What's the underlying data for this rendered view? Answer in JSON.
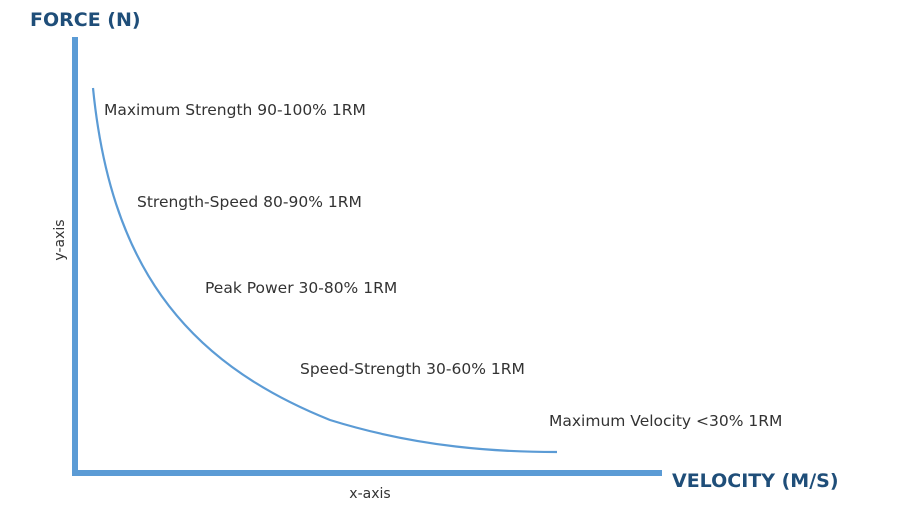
{
  "chart_data": {
    "type": "line",
    "title": "",
    "ylabel_title": "FORCE (N)",
    "xlabel_title": "VELOCITY (M/S)",
    "ylabel": "y-axis",
    "xlabel": "x-axis",
    "grid": false,
    "curve": "hyperbolic force-velocity curve (force decreases as velocity increases)",
    "annotations": [
      {
        "label": "Maximum Strength 90-100% 1RM"
      },
      {
        "label": "Strength-Speed 80-90% 1RM"
      },
      {
        "label": "Peak Power 30-80% 1RM"
      },
      {
        "label": "Speed-Strength 30-60% 1RM"
      },
      {
        "label": "Maximum Velocity <30% 1RM"
      }
    ],
    "colors": {
      "axis": "#5b9bd5",
      "curve": "#5b9bd5",
      "title": "#1f4e79",
      "text": "#333333"
    }
  }
}
